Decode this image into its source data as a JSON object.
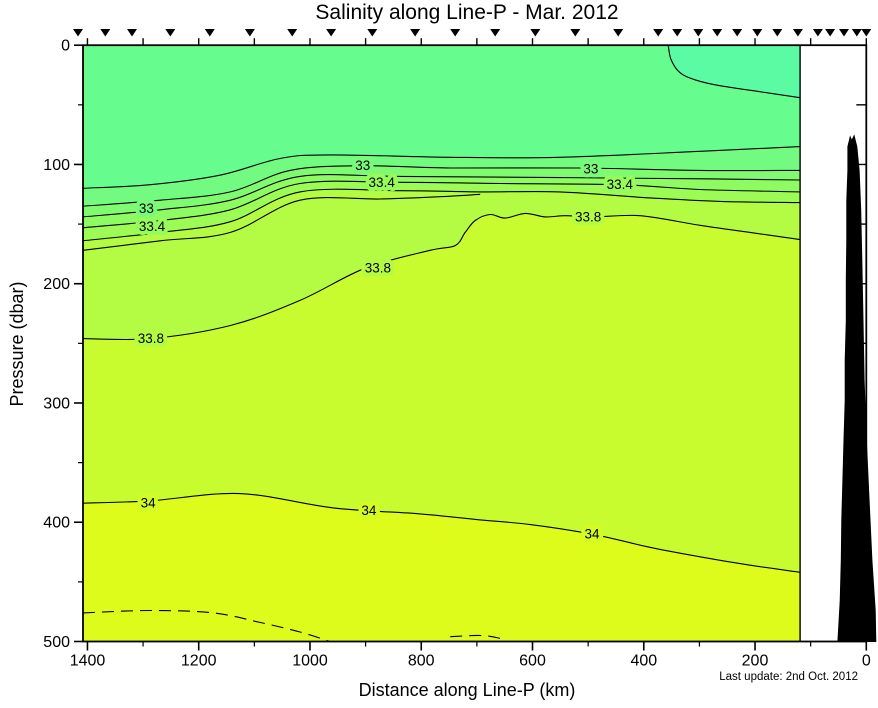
{
  "chart_data": {
    "type": "filled-contour-section",
    "title": "Salinity along Line-P - Mar. 2012",
    "xlabel": "Distance along Line-P (km)",
    "ylabel": "Pressure (dbar)",
    "annotation": "Last update: 2nd Oct. 2012",
    "background_color": "#FFFFFF",
    "axis_color": "#000000",
    "field_color": "#66FC8E",
    "data_right_edge_km": 119,
    "x_axis": {
      "range": [
        1408,
        0
      ],
      "reversed": true,
      "major_ticks": [
        1400,
        1200,
        1000,
        800,
        600,
        400,
        200,
        0
      ],
      "major_tick_labels": [
        "1400",
        "1200",
        "1000",
        "800",
        "600",
        "400",
        "200",
        "0"
      ],
      "minor_ticks": [
        1300,
        1100,
        900,
        700,
        500,
        300,
        100
      ],
      "top_tick_interval_km": 100
    },
    "y_axis": {
      "range": [
        0,
        500
      ],
      "major_ticks": [
        0,
        100,
        200,
        300,
        400,
        500
      ],
      "major_tick_labels": [
        "0",
        "100",
        "200",
        "300",
        "400",
        "500"
      ],
      "minor_ticks": [
        50,
        150,
        250,
        350,
        450
      ],
      "right_tick_interval_dbar": 50
    },
    "station_markers_km": [
      1417,
      1368,
      1320,
      1251,
      1180,
      1108,
      1032,
      962,
      888,
      811,
      739,
      667,
      595,
      523,
      446,
      374,
      340,
      302,
      268,
      232,
      196,
      160,
      123,
      87,
      65,
      40,
      17,
      0
    ],
    "low_salinity_patch": {
      "level": 32.6,
      "color": "#5BFBA4",
      "boundary": [
        [
          356,
          0
        ],
        [
          351,
          12
        ],
        [
          335,
          23
        ],
        [
          308,
          29
        ],
        [
          263,
          34
        ],
        [
          191,
          39
        ],
        [
          119,
          44
        ]
      ]
    },
    "contours": [
      {
        "level": 32.8,
        "style": "solid",
        "fill_below": "#72FB80",
        "points": [
          [
            1408,
            120
          ],
          [
            1287,
            117
          ],
          [
            1162,
            109
          ],
          [
            1054,
            95
          ],
          [
            964,
            92
          ],
          [
            748,
            94
          ],
          [
            551,
            94
          ],
          [
            299,
            89
          ],
          [
            119,
            85
          ]
        ]
      },
      {
        "level": 33.0,
        "style": "solid",
        "fill_below": "#80FB71",
        "label": "33",
        "label_halo": "#79FB79",
        "label_positions": [
          [
            1294,
            137
          ],
          [
            905,
            101
          ],
          [
            495,
            104
          ]
        ],
        "points": [
          [
            1408,
            135
          ],
          [
            1269,
            130
          ],
          [
            1143,
            123
          ],
          [
            1036,
            105
          ],
          [
            910,
            101
          ],
          [
            748,
            103
          ],
          [
            515,
            103
          ],
          [
            299,
            105
          ],
          [
            119,
            105
          ]
        ]
      },
      {
        "level": 33.2,
        "style": "solid",
        "fill_below": "#8EFB62",
        "points": [
          [
            1408,
            144
          ],
          [
            1269,
            138
          ],
          [
            1143,
            130
          ],
          [
            1018,
            110
          ],
          [
            838,
            110
          ],
          [
            551,
            111
          ],
          [
            299,
            112
          ],
          [
            119,
            113
          ]
        ]
      },
      {
        "level": 33.4,
        "style": "solid",
        "fill_below": "#9CFB54",
        "label": "33.4",
        "label_halo": "#96FB5B",
        "label_positions": [
          [
            1284,
            152
          ],
          [
            871,
            115
          ],
          [
            443,
            117
          ]
        ],
        "points": [
          [
            1408,
            153
          ],
          [
            1269,
            147
          ],
          [
            1143,
            138
          ],
          [
            1018,
            116
          ],
          [
            838,
            115
          ],
          [
            658,
            116
          ],
          [
            443,
            117
          ],
          [
            299,
            121
          ],
          [
            119,
            123
          ]
        ]
      },
      {
        "level": 33.6,
        "style": "solid",
        "fill_below": "#B4FB44",
        "points": [
          [
            1408,
            164
          ],
          [
            1269,
            157
          ],
          [
            1143,
            148
          ],
          [
            1018,
            123
          ],
          [
            838,
            122
          ],
          [
            694,
            123
          ],
          [
            551,
            123
          ],
          [
            389,
            128
          ],
          [
            263,
            131
          ],
          [
            119,
            132
          ]
        ]
      },
      {
        "level": 33.7,
        "style": "solid",
        "fill_below": null,
        "points": [
          [
            1408,
            172
          ],
          [
            1269,
            164
          ],
          [
            1143,
            157
          ],
          [
            1018,
            130
          ],
          [
            874,
            129
          ],
          [
            766,
            127
          ],
          [
            694,
            125
          ]
        ]
      },
      {
        "level": 33.8,
        "style": "solid",
        "fill_below": "#C9FC2E",
        "label": "33.8",
        "label_halo": "#B4FB44",
        "label_positions": [
          [
            1286,
            246
          ],
          [
            878,
            187
          ],
          [
            500,
            144
          ]
        ],
        "points": [
          [
            1408,
            246
          ],
          [
            1287,
            246
          ],
          [
            1143,
            235
          ],
          [
            1018,
            214
          ],
          [
            901,
            187
          ],
          [
            784,
            172
          ],
          [
            739,
            168
          ],
          [
            721,
            157
          ],
          [
            703,
            147
          ],
          [
            676,
            142
          ],
          [
            649,
            145
          ],
          [
            613,
            141
          ],
          [
            577,
            144
          ],
          [
            541,
            143
          ],
          [
            488,
            144
          ],
          [
            407,
            143
          ],
          [
            299,
            151
          ],
          [
            209,
            157
          ],
          [
            119,
            163
          ]
        ]
      },
      {
        "level": 34.0,
        "style": "solid",
        "fill_below": "#DDFC1C",
        "label": "34",
        "label_halo": "#D3FC25",
        "label_positions": [
          [
            1291,
            384
          ],
          [
            894,
            390
          ],
          [
            493,
            410
          ]
        ],
        "points": [
          [
            1408,
            384
          ],
          [
            1287,
            382
          ],
          [
            1126,
            376
          ],
          [
            958,
            388
          ],
          [
            802,
            393
          ],
          [
            694,
            398
          ],
          [
            604,
            402
          ],
          [
            493,
            410
          ],
          [
            389,
            421
          ],
          [
            299,
            429
          ],
          [
            209,
            436
          ],
          [
            119,
            442
          ]
        ]
      },
      {
        "level": 34.2,
        "style": "dashed",
        "fill_below": null,
        "segments": [
          [
            [
              1408,
              476
            ],
            [
              1287,
              474
            ],
            [
              1174,
              476
            ],
            [
              1090,
              484
            ],
            [
              1018,
              492
            ],
            [
              964,
              500
            ]
          ],
          [
            [
              748,
              496
            ],
            [
              694,
              495
            ],
            [
              662,
              497
            ],
            [
              648,
              500
            ]
          ]
        ]
      }
    ],
    "bathymetry": {
      "color": "#000000",
      "polygon": [
        [
          33,
          85
        ],
        [
          29,
          77
        ],
        [
          26,
          80
        ],
        [
          22,
          76
        ],
        [
          17,
          85
        ],
        [
          13,
          105
        ],
        [
          10,
          138
        ],
        [
          8,
          180
        ],
        [
          6,
          231
        ],
        [
          4,
          281
        ],
        [
          0,
          331
        ],
        [
          -5,
          382
        ],
        [
          -10,
          432
        ],
        [
          -16,
          474
        ],
        [
          -17,
          500
        ],
        [
          51,
          500
        ],
        [
          47,
          466
        ],
        [
          45,
          432
        ],
        [
          44,
          398
        ],
        [
          42,
          365
        ],
        [
          40,
          331
        ],
        [
          38,
          298
        ],
        [
          38,
          264
        ],
        [
          36,
          231
        ],
        [
          36,
          197
        ],
        [
          35,
          163
        ],
        [
          35,
          130
        ],
        [
          33,
          105
        ]
      ]
    }
  }
}
